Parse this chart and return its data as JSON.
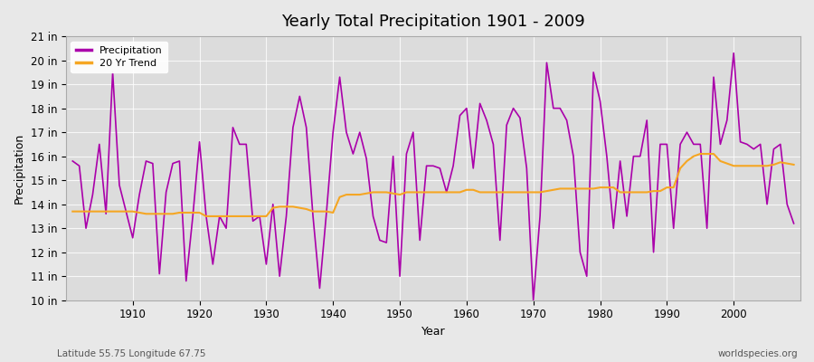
{
  "title": "Yearly Total Precipitation 1901 - 2009",
  "xlabel": "Year",
  "ylabel": "Precipitation",
  "subtitle_left": "Latitude 55.75 Longitude 67.75",
  "subtitle_right": "worldspecies.org",
  "precip_color": "#aa00aa",
  "trend_color": "#f5a623",
  "background_color": "#e8e8e8",
  "plot_bg_color": "#dcdcdc",
  "ylim": [
    10,
    21
  ],
  "ytick_labels": [
    "10 in",
    "11 in",
    "12 in",
    "13 in",
    "14 in",
    "15 in",
    "16 in",
    "17 in",
    "18 in",
    "19 in",
    "20 in",
    "21 in"
  ],
  "ytick_values": [
    10,
    11,
    12,
    13,
    14,
    15,
    16,
    17,
    18,
    19,
    20,
    21
  ],
  "years": [
    1901,
    1902,
    1903,
    1904,
    1905,
    1906,
    1907,
    1908,
    1909,
    1910,
    1911,
    1912,
    1913,
    1914,
    1915,
    1916,
    1917,
    1918,
    1919,
    1920,
    1921,
    1922,
    1923,
    1924,
    1925,
    1926,
    1927,
    1928,
    1929,
    1930,
    1931,
    1932,
    1933,
    1934,
    1935,
    1936,
    1937,
    1938,
    1939,
    1940,
    1941,
    1942,
    1943,
    1944,
    1945,
    1946,
    1947,
    1948,
    1949,
    1950,
    1951,
    1952,
    1953,
    1954,
    1955,
    1956,
    1957,
    1958,
    1959,
    1960,
    1961,
    1962,
    1963,
    1964,
    1965,
    1966,
    1967,
    1968,
    1969,
    1970,
    1971,
    1972,
    1973,
    1974,
    1975,
    1976,
    1977,
    1978,
    1979,
    1980,
    1981,
    1982,
    1983,
    1984,
    1985,
    1986,
    1987,
    1988,
    1989,
    1990,
    1991,
    1992,
    1993,
    1994,
    1995,
    1996,
    1997,
    1998,
    1999,
    2000,
    2001,
    2002,
    2003,
    2004,
    2005,
    2006,
    2007,
    2008,
    2009
  ],
  "precip": [
    15.8,
    15.6,
    13.0,
    14.4,
    16.5,
    13.6,
    19.5,
    14.8,
    13.7,
    12.6,
    14.4,
    15.8,
    15.7,
    11.1,
    14.5,
    15.7,
    15.8,
    10.8,
    13.5,
    16.6,
    13.5,
    11.5,
    13.5,
    13.0,
    17.2,
    16.5,
    16.5,
    13.3,
    13.5,
    11.5,
    14.0,
    11.0,
    13.5,
    17.2,
    18.5,
    17.2,
    13.5,
    10.5,
    13.6,
    17.0,
    19.3,
    17.0,
    16.1,
    17.0,
    15.9,
    13.5,
    12.5,
    12.4,
    16.0,
    11.0,
    16.1,
    17.0,
    12.5,
    15.6,
    15.6,
    15.5,
    14.5,
    15.6,
    17.7,
    18.0,
    15.5,
    18.2,
    17.5,
    16.5,
    12.5,
    17.3,
    18.0,
    17.6,
    15.5,
    10.0,
    13.5,
    19.9,
    18.0,
    18.0,
    17.5,
    16.0,
    12.0,
    11.0,
    19.5,
    18.3,
    16.0,
    13.0,
    15.8,
    13.5,
    16.0,
    16.0,
    17.5,
    12.0,
    16.5,
    16.5,
    13.0,
    16.5,
    17.0,
    16.5,
    16.5,
    13.0,
    19.3,
    16.5,
    17.5,
    20.3,
    16.6,
    16.5,
    16.3,
    16.5,
    14.0,
    16.3,
    16.5,
    14.0,
    13.2
  ],
  "trend": [
    13.7,
    13.7,
    13.7,
    13.7,
    13.7,
    13.7,
    13.7,
    13.7,
    13.7,
    13.7,
    13.65,
    13.6,
    13.6,
    13.6,
    13.6,
    13.6,
    13.65,
    13.65,
    13.65,
    13.65,
    13.5,
    13.5,
    13.5,
    13.5,
    13.5,
    13.5,
    13.5,
    13.5,
    13.5,
    13.5,
    13.85,
    13.9,
    13.9,
    13.9,
    13.85,
    13.8,
    13.7,
    13.7,
    13.7,
    13.65,
    14.3,
    14.4,
    14.4,
    14.4,
    14.45,
    14.5,
    14.5,
    14.5,
    14.45,
    14.4,
    14.5,
    14.5,
    14.5,
    14.5,
    14.5,
    14.5,
    14.5,
    14.5,
    14.5,
    14.6,
    14.6,
    14.5,
    14.5,
    14.5,
    14.5,
    14.5,
    14.5,
    14.5,
    14.5,
    14.5,
    14.5,
    14.55,
    14.6,
    14.65,
    14.65,
    14.65,
    14.65,
    14.65,
    14.65,
    14.7,
    14.7,
    14.7,
    14.5,
    14.5,
    14.5,
    14.5,
    14.5,
    14.55,
    14.55,
    14.7,
    14.7,
    15.5,
    15.8,
    16.0,
    16.1,
    16.1,
    16.1,
    15.8,
    15.7,
    15.6,
    15.6,
    15.6,
    15.6,
    15.6,
    15.6,
    15.65,
    15.75,
    15.7,
    15.65
  ]
}
